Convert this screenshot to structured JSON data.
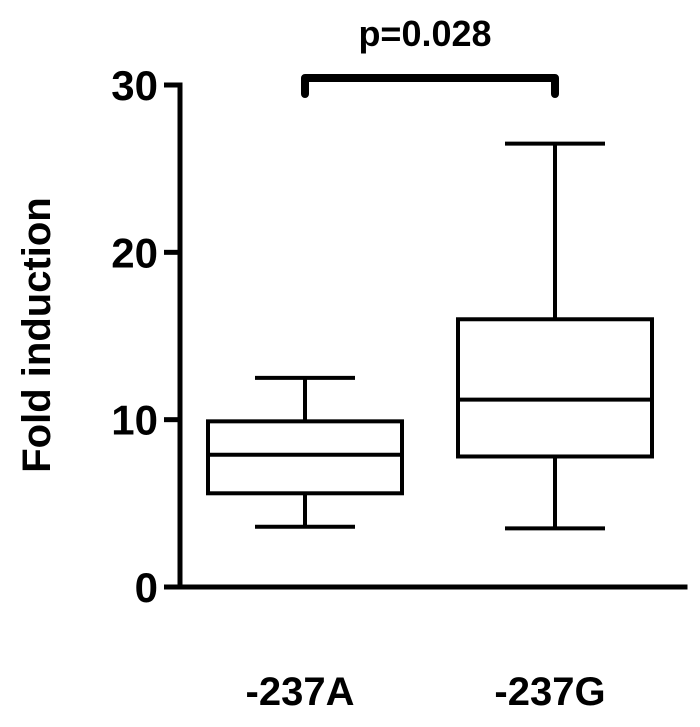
{
  "chart_data": {
    "type": "box",
    "title": "",
    "ylabel": "Fold induction",
    "xlabel": "",
    "ylim": [
      0,
      30
    ],
    "yticks": [
      0,
      10,
      20,
      30
    ],
    "categories": [
      "-237A",
      "-237G"
    ],
    "boxes": [
      {
        "category": "-237A",
        "min": 3.6,
        "q1": 5.6,
        "median": 7.9,
        "q3": 9.9,
        "max": 12.5
      },
      {
        "category": "-237G",
        "min": 3.5,
        "q1": 7.8,
        "median": 11.2,
        "q3": 16.0,
        "max": 26.5
      }
    ],
    "annotations": [
      {
        "type": "significance-bracket",
        "from": "-237A",
        "to": "-237G",
        "text": "p=0.028"
      }
    ]
  }
}
